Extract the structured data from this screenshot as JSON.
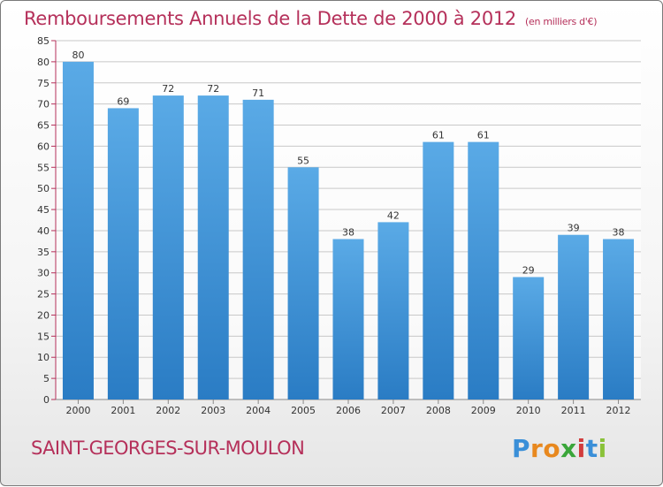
{
  "title": "Remboursements Annuels de la Dette de 2000 à 2012",
  "unit_note": "(en milliers d'€)",
  "commune": "SAINT-GEORGES-SUR-MOULON",
  "brand": {
    "letters": [
      "P",
      "r",
      "o",
      "x",
      "i",
      "t",
      "i"
    ],
    "colors": [
      "#3a8fd8",
      "#e8881e",
      "#e8881e",
      "#3aa63a",
      "#d23c3c",
      "#3a8fd8",
      "#8ac23a"
    ]
  },
  "colors": {
    "title": "#b5305a",
    "bar_light": "#5aaae6",
    "bar_dark": "#2a7cc4",
    "grid": "#c8c8c8",
    "axis_mark": "#b5305a"
  },
  "chart_data": {
    "type": "bar",
    "title": "Remboursements Annuels de la Dette de 2000 à 2012",
    "xlabel": "",
    "ylabel": "",
    "categories": [
      "2000",
      "2001",
      "2002",
      "2003",
      "2004",
      "2005",
      "2006",
      "2007",
      "2008",
      "2009",
      "2010",
      "2011",
      "2012"
    ],
    "values": [
      80,
      69,
      72,
      72,
      71,
      55,
      38,
      42,
      61,
      61,
      29,
      39,
      38
    ],
    "ylim": [
      0,
      85
    ],
    "yticks": [
      0,
      5,
      10,
      15,
      20,
      25,
      30,
      35,
      40,
      45,
      50,
      55,
      60,
      65,
      70,
      75,
      80,
      85
    ],
    "grid": true,
    "data_labels": true
  }
}
